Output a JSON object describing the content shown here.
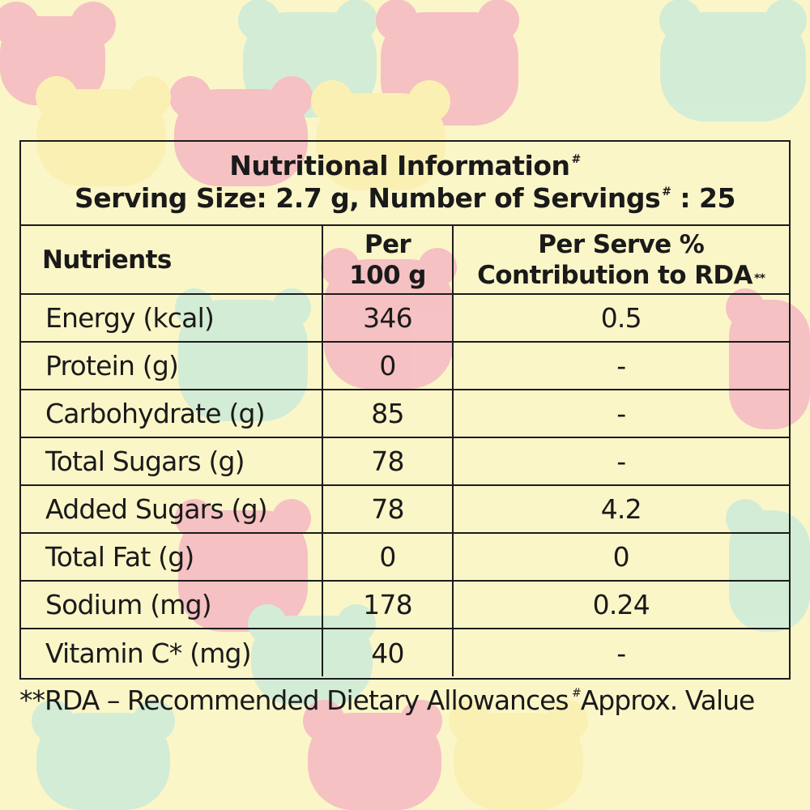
{
  "title": "Nutritional Information",
  "title_mark": "#",
  "serving_line_a": "Serving Size: 2.7 g, Number of Servings",
  "serving_mark": "#",
  "serving_line_b": " : 25",
  "headers": {
    "nutrients": "Nutrients",
    "per100_line1": "Per",
    "per100_line2": "100 g",
    "rda_line1": "Per Serve %",
    "rda_line2": "Contribution to RDA",
    "rda_mark": "**"
  },
  "rows": [
    {
      "name": "Energy (kcal)",
      "per100": "346",
      "rda": "0.5"
    },
    {
      "name": "Protein (g)",
      "per100": "0",
      "rda": "-"
    },
    {
      "name": "Carbohydrate (g)",
      "per100": "85",
      "rda": "-"
    },
    {
      "name": "Total Sugars (g)",
      "per100": "78",
      "rda": "-"
    },
    {
      "name": "Added Sugars (g)",
      "per100": "78",
      "rda": "4.2"
    },
    {
      "name": "Total Fat (g)",
      "per100": "0",
      "rda": "0"
    },
    {
      "name": "Sodium (mg)",
      "per100": "178",
      "rda": "0.24"
    },
    {
      "name": "Vitamin C* (mg)",
      "per100": "40",
      "rda": "-"
    }
  ],
  "footnote": {
    "rda": "**RDA – Recommended Dietary Allowances",
    "approx_mark": "#",
    "approx": "Approx. Value"
  },
  "colors": {
    "background": "#fbf6c8",
    "bear_pink": "#f4b8c3",
    "bear_mint": "#cdebd8",
    "bear_yellow": "#fbefb0",
    "ink": "#1c1c1c"
  }
}
